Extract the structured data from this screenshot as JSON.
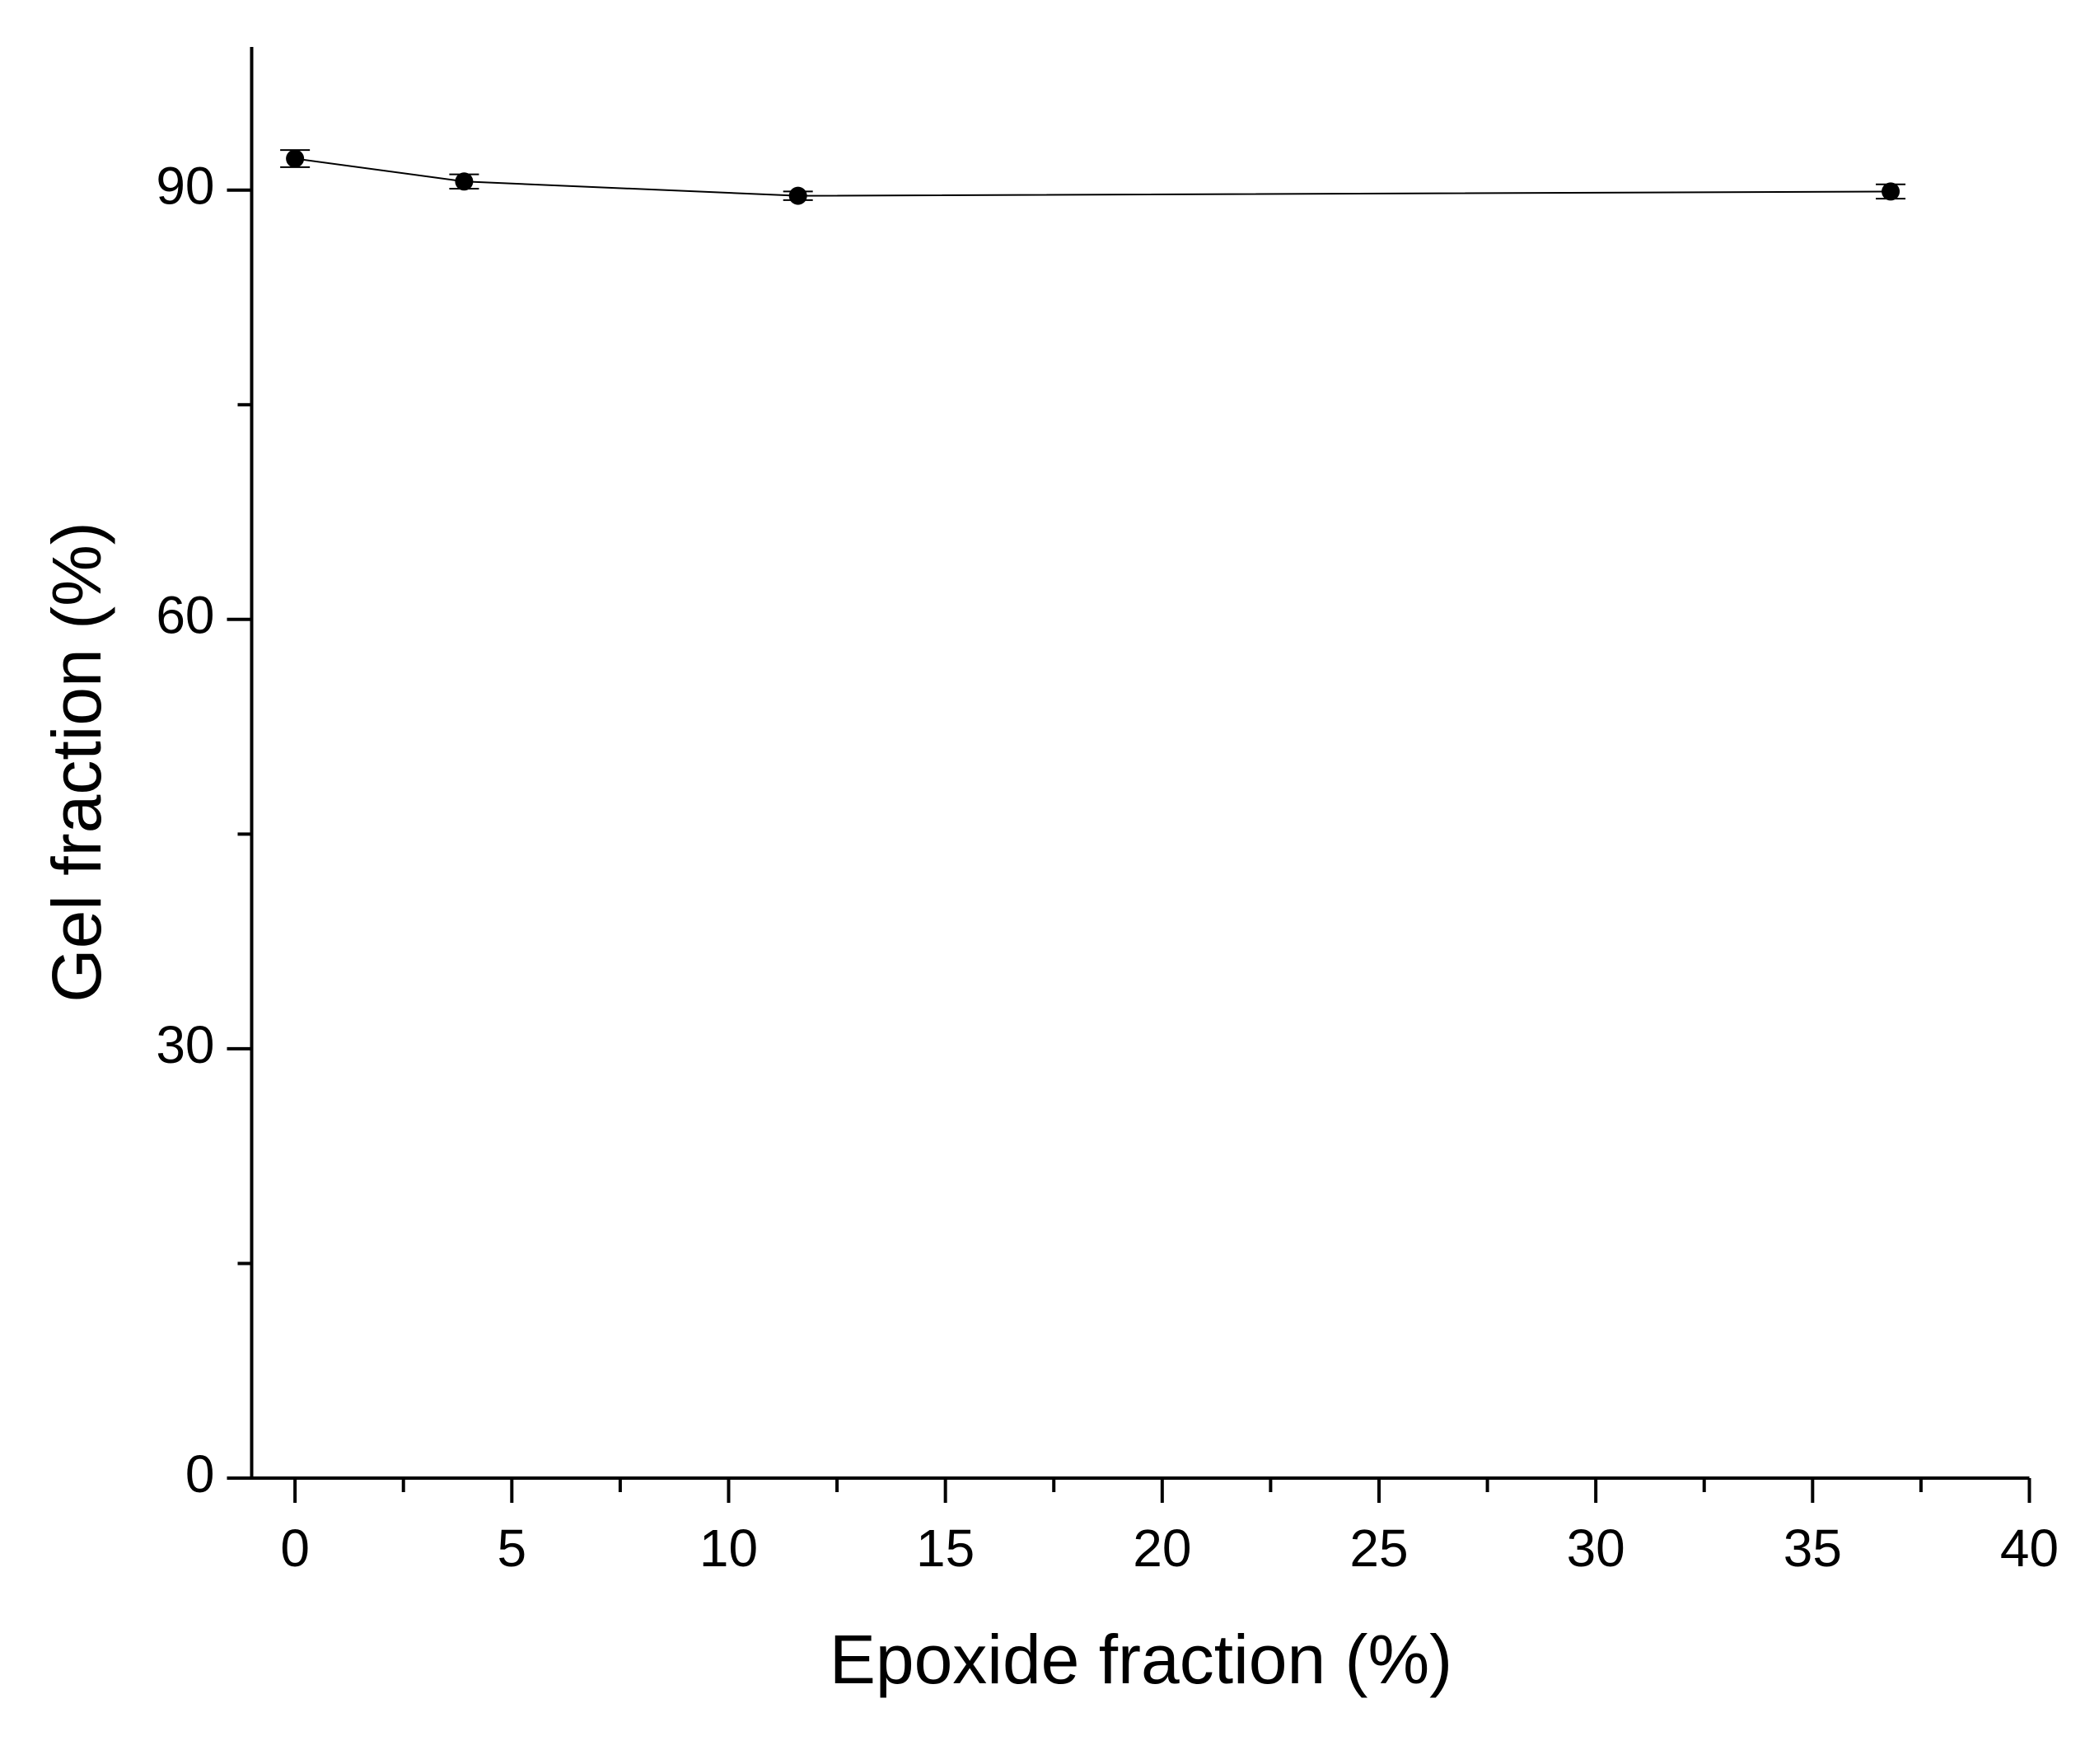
{
  "chart_data": {
    "type": "line",
    "x_label": "Epoxide fraction (%)",
    "y_label": "Gel fraction (%)",
    "series": [
      {
        "color": "#000000",
        "x": [
          0,
          3.9,
          11.6,
          36.8
        ],
        "values": [
          92.2,
          90.6,
          89.6,
          89.9
        ],
        "errors": [
          0.6,
          0.5,
          0.3,
          0.5
        ]
      }
    ],
    "xlim": [
      -1,
      40
    ],
    "xticks": [
      0,
      5,
      10,
      15,
      20,
      25,
      30,
      35,
      40
    ],
    "ylim": [
      0,
      100
    ],
    "yticks": [
      0,
      30,
      60,
      90
    ],
    "grid": false
  }
}
